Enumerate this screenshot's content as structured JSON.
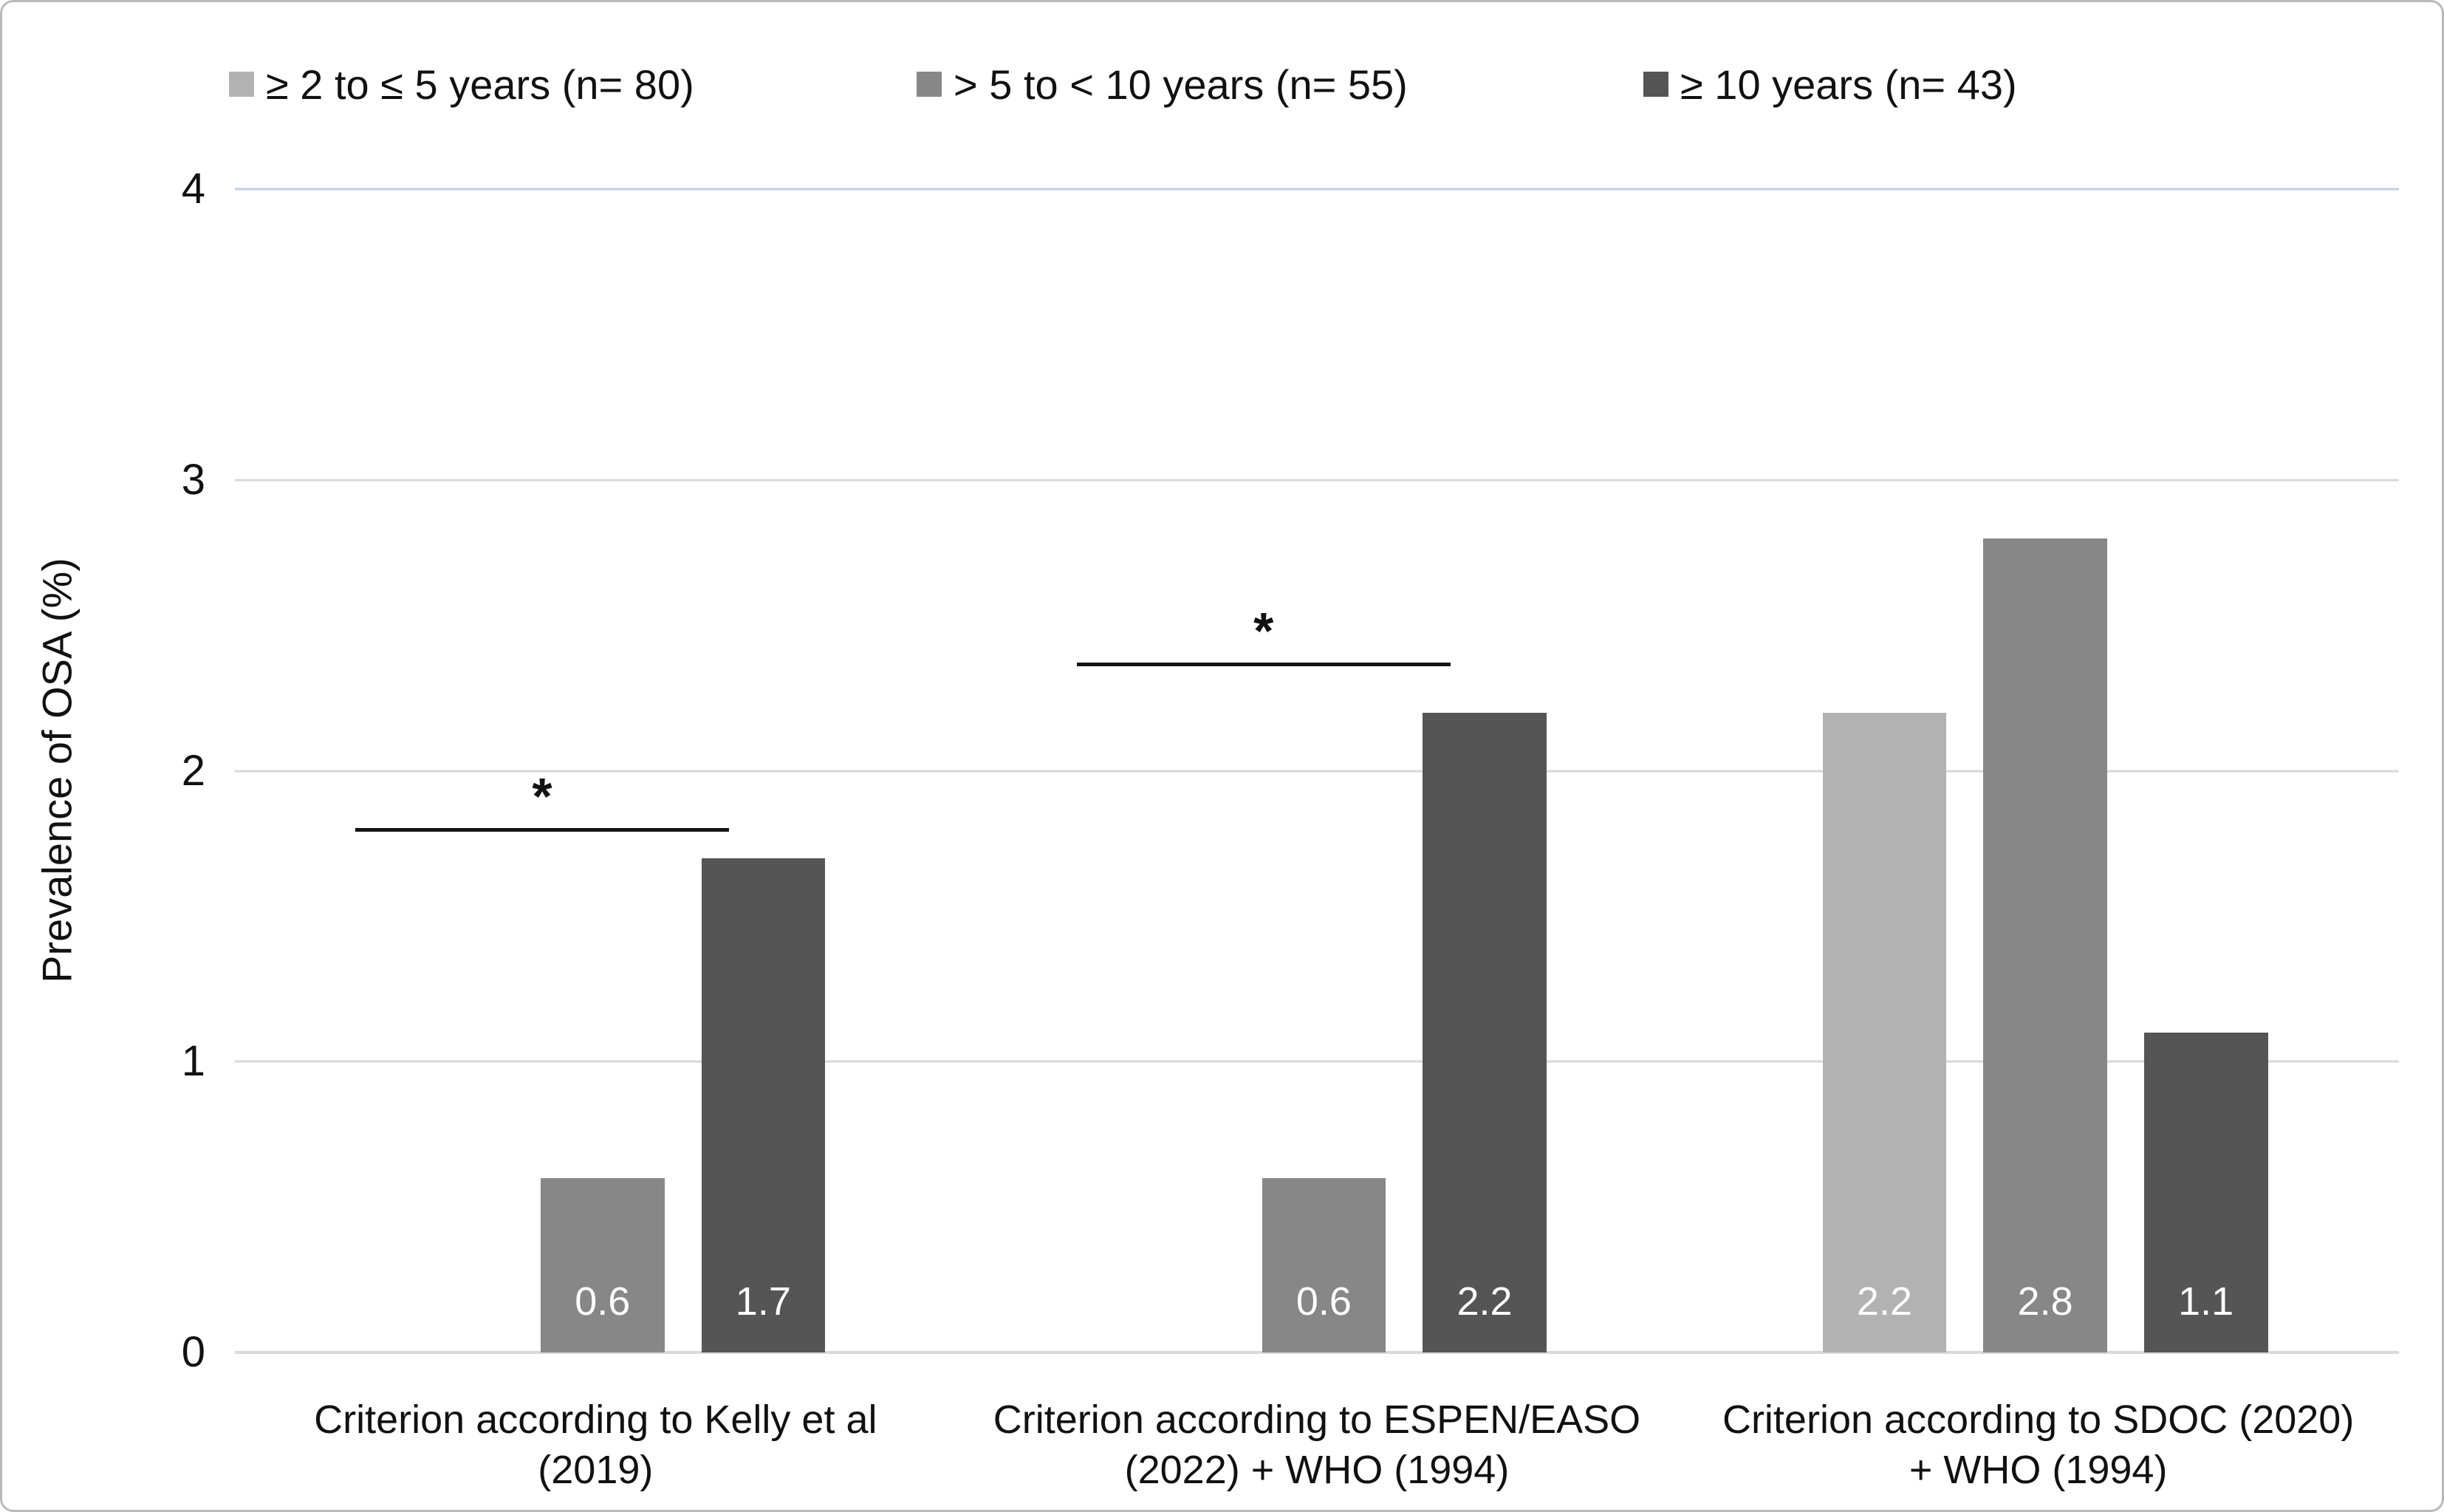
{
  "chart_data": {
    "type": "bar",
    "title": "",
    "xlabel": "",
    "ylabel": "Prevalence of OSA (%)",
    "ylim": [
      0,
      4
    ],
    "yticks": [
      0,
      1,
      2,
      3,
      4
    ],
    "grid": true,
    "legend_position": "top",
    "bar_labels": true,
    "categories": [
      [
        "Criterion according to Kelly et al",
        "(2019)"
      ],
      [
        "Criterion according to ESPEN/EASO",
        "(2022) + WHO (1994)"
      ],
      [
        "Criterion according to SDOC (2020)",
        "+ WHO (1994)"
      ]
    ],
    "series": [
      {
        "name": "≥ 2 to ≤ 5 years (n= 80)",
        "color": "#b2b2b2",
        "values": [
          null,
          null,
          2.2
        ]
      },
      {
        "name": "> 5 to < 10 years (n= 55)",
        "color": "#878787",
        "values": [
          0.6,
          0.6,
          2.8
        ]
      },
      {
        "name": "≥ 10 years (n= 43)",
        "color": "#555555",
        "values": [
          1.7,
          2.2,
          1.1
        ]
      }
    ],
    "significance": [
      {
        "group_index": 0,
        "marker": "*",
        "line_y": 1.79
      },
      {
        "group_index": 1,
        "marker": "*",
        "line_y": 2.36
      }
    ]
  },
  "legend": {
    "items": [
      {
        "label": "≥ 2 to ≤ 5 years (n= 80)",
        "color": "#b2b2b2"
      },
      {
        "label": "> 5 to < 10 years (n= 55)",
        "color": "#878787"
      },
      {
        "label": "≥ 10 years (n= 43)",
        "color": "#555555"
      }
    ]
  },
  "colors": {
    "text": "#111111",
    "gridline": "#d9d9d9",
    "top_gridline": "#c2cde0",
    "bar_label": "#ffffff",
    "sig": "#151515",
    "border": "#b9b9b9"
  }
}
